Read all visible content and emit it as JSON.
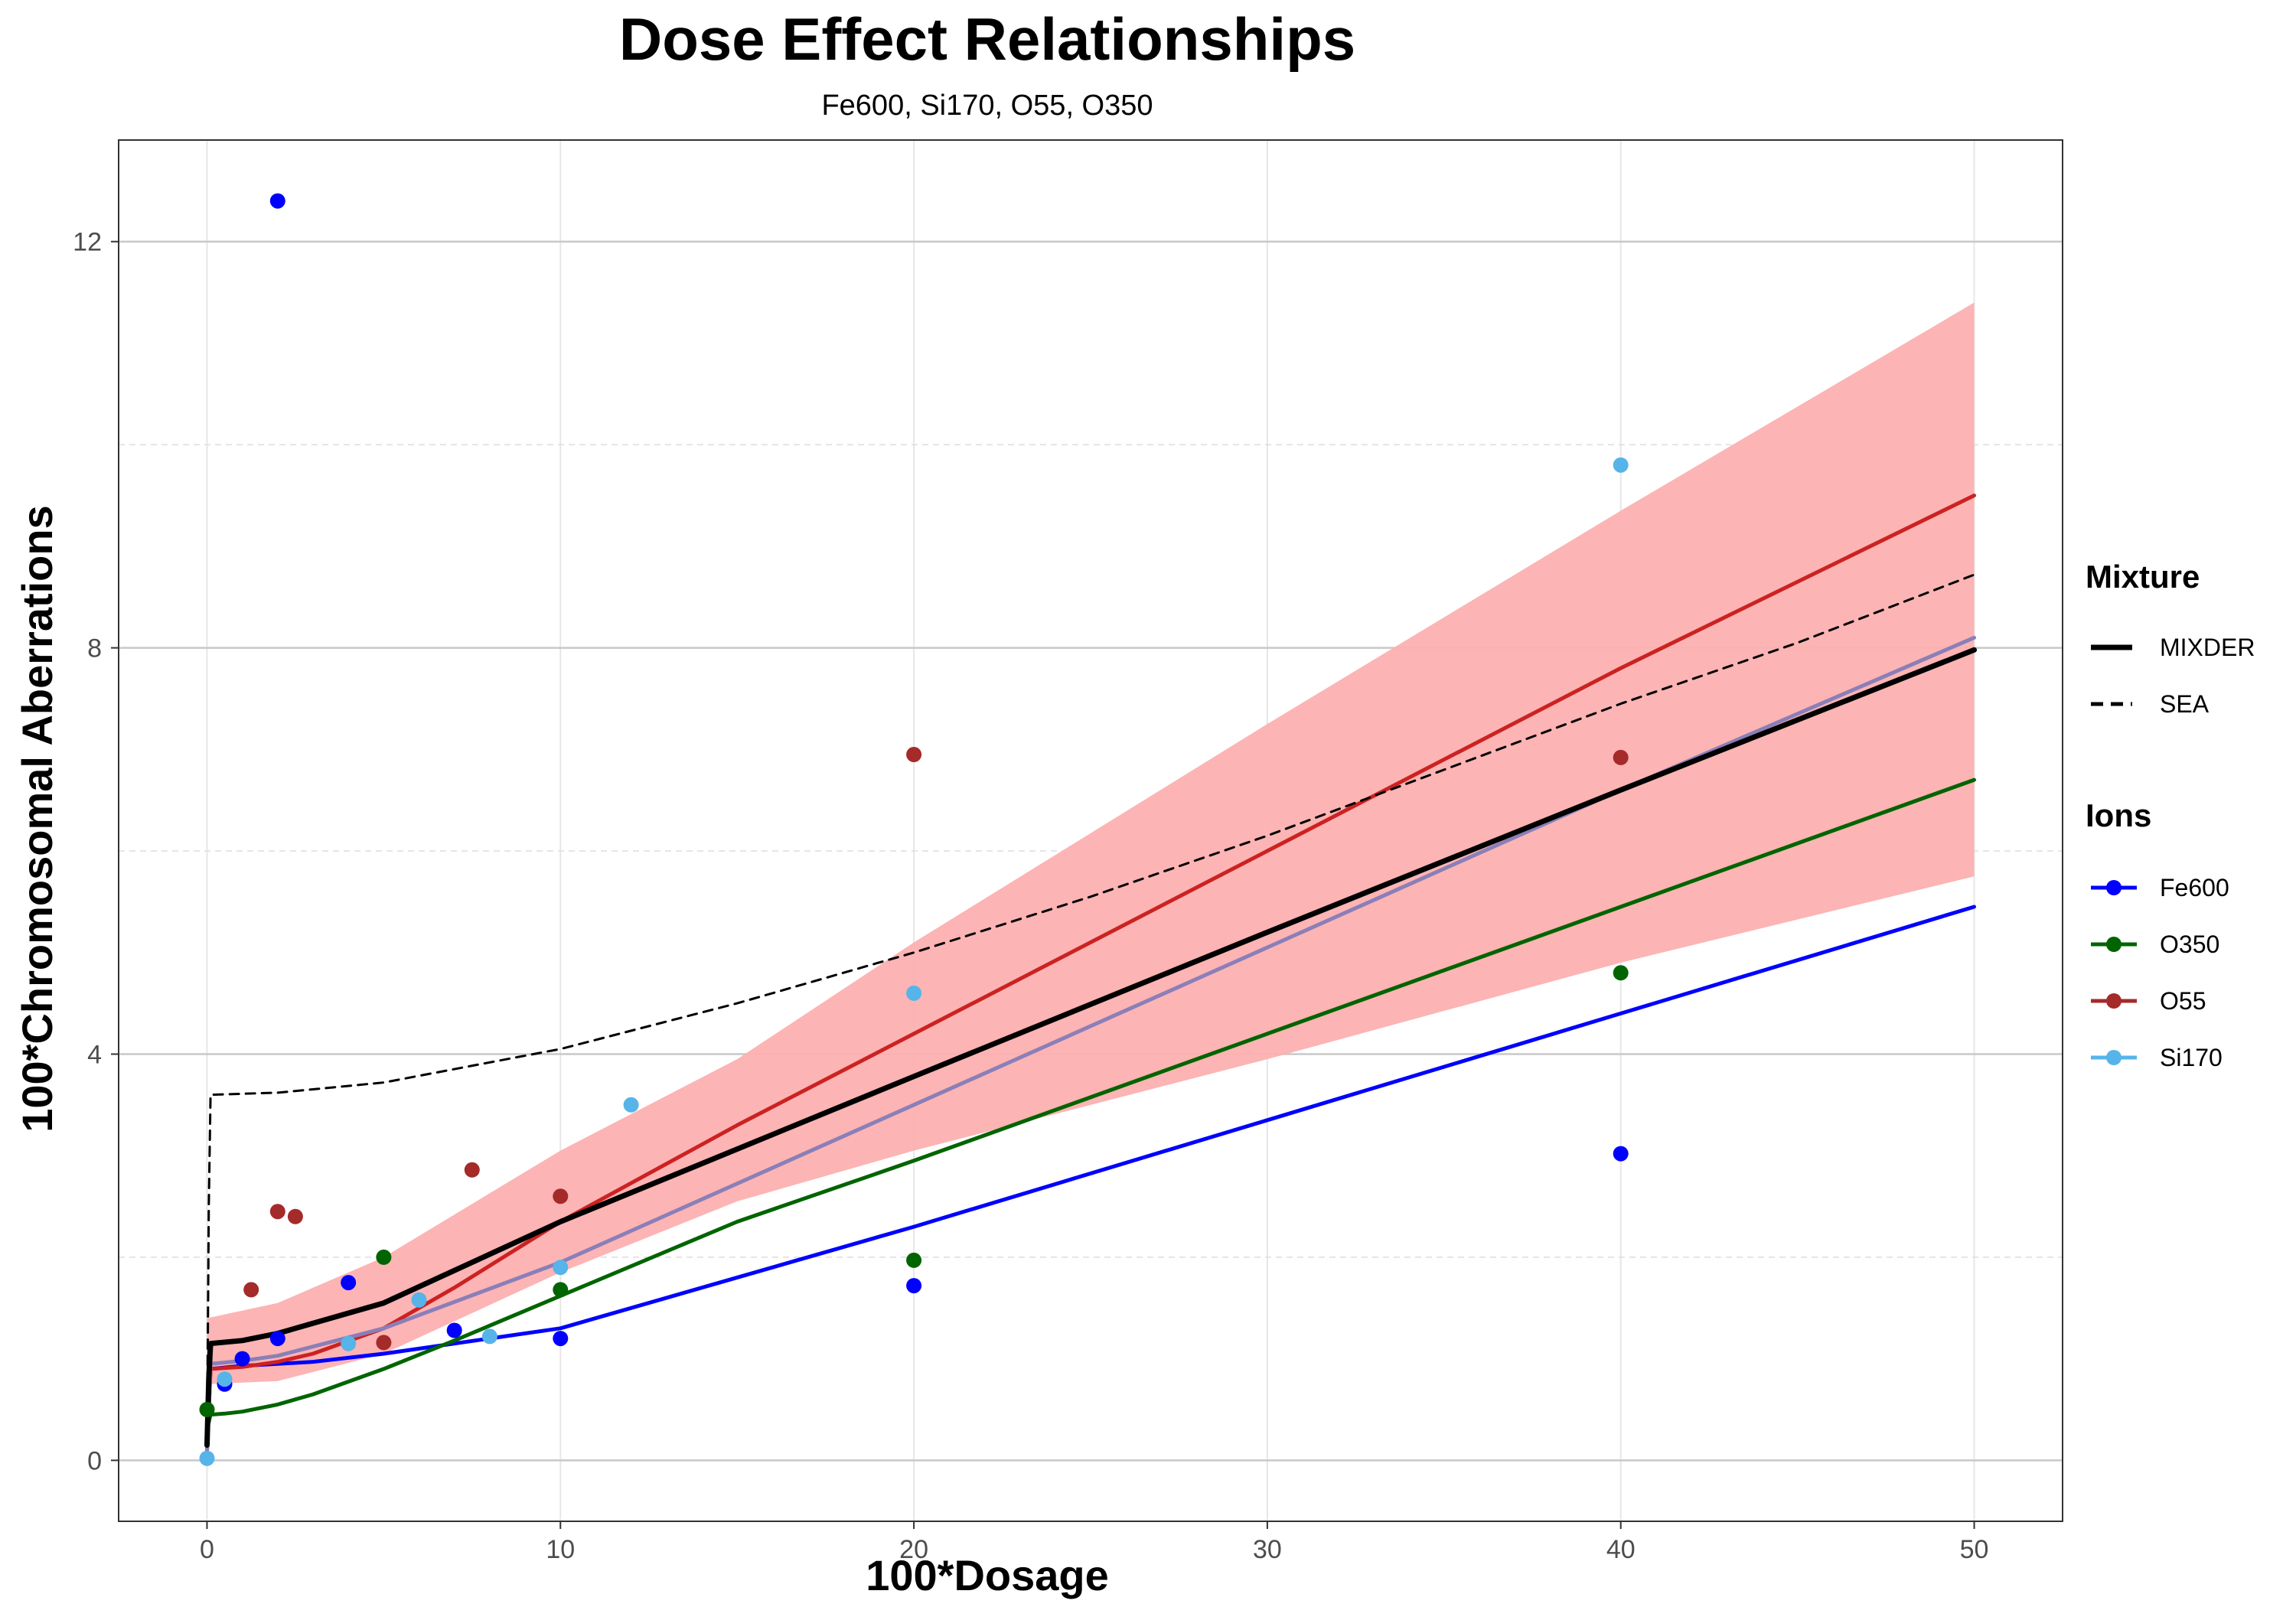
{
  "chart_data": {
    "type": "scatter",
    "title": "Dose Effect Relationships",
    "subtitle": "Fe600, Si170, O55, O350",
    "xlabel": "100*Dosage",
    "ylabel": "100*Chromosomal Aberrations",
    "xlim": [
      -2.5,
      52.5
    ],
    "ylim": [
      -0.6,
      13.0
    ],
    "x_ticks": [
      0,
      10,
      20,
      30,
      40,
      50
    ],
    "y_ticks": [
      0,
      4,
      8,
      12
    ],
    "y_minor_ticks": [
      2,
      6,
      10
    ],
    "grid": true,
    "legend_position": "right",
    "legend": {
      "mixture_title": "Mixture",
      "mixture_items": [
        {
          "label": "MIXDER",
          "style": "solid"
        },
        {
          "label": "SEA",
          "style": "dashed"
        }
      ],
      "ions_title": "Ions",
      "ions_items": [
        {
          "label": "Fe600",
          "color": "#0000ff"
        },
        {
          "label": "O350",
          "color": "#006400"
        },
        {
          "label": "O55",
          "color": "#a52a2a"
        },
        {
          "label": "Si170",
          "color": "#56b4e9"
        }
      ]
    },
    "points": [
      {
        "name": "Fe600",
        "color": "#0000ff",
        "x": [
          0.5,
          1,
          2,
          2,
          4,
          7,
          10,
          20,
          40
        ],
        "y": [
          0.75,
          1.0,
          1.2,
          12.4,
          1.75,
          1.28,
          1.2,
          1.72,
          3.02
        ]
      },
      {
        "name": "O350",
        "color": "#006400",
        "x": [
          0,
          5,
          10,
          20,
          40
        ],
        "y": [
          0.5,
          2.0,
          1.68,
          1.97,
          4.8
        ]
      },
      {
        "name": "O55",
        "color": "#a52a2a",
        "x": [
          1.25,
          2,
          2.5,
          5,
          7.5,
          10,
          20,
          40
        ],
        "y": [
          1.68,
          2.45,
          2.4,
          1.16,
          2.86,
          2.6,
          6.95,
          6.92
        ]
      },
      {
        "name": "Si170",
        "color": "#56b4e9",
        "x": [
          0,
          0.5,
          4,
          6,
          8,
          10,
          12,
          20,
          40
        ],
        "y": [
          0.02,
          0.8,
          1.15,
          1.58,
          1.22,
          1.9,
          3.5,
          4.6,
          9.8
        ]
      }
    ],
    "series": [
      {
        "name": "Fe600",
        "color": "#0000ff",
        "x": [
          0,
          0.1,
          1,
          2,
          3,
          5,
          10,
          20,
          30,
          40,
          50
        ],
        "y": [
          0.1,
          0.9,
          0.93,
          0.95,
          0.97,
          1.05,
          1.3,
          2.3,
          3.35,
          4.4,
          5.45
        ]
      },
      {
        "name": "O350",
        "color": "#006400",
        "x": [
          0,
          0.1,
          0.5,
          1,
          2,
          3,
          5,
          7,
          10,
          15,
          20,
          30,
          40,
          50
        ],
        "y": [
          0.3,
          0.45,
          0.46,
          0.48,
          0.55,
          0.65,
          0.9,
          1.18,
          1.62,
          2.35,
          2.95,
          4.2,
          5.45,
          6.7
        ]
      },
      {
        "name": "O55",
        "color": "#cc2222",
        "x": [
          0,
          0.1,
          1,
          2,
          3,
          5,
          7,
          10,
          15,
          20,
          30,
          40,
          50
        ],
        "y": [
          0.1,
          0.9,
          0.92,
          0.97,
          1.05,
          1.3,
          1.7,
          2.35,
          3.3,
          4.2,
          6.0,
          7.8,
          9.5
        ]
      },
      {
        "name": "Si170",
        "color": "#8a7fb8",
        "x": [
          0,
          0.1,
          1,
          2,
          3,
          5,
          10,
          20,
          30,
          40,
          50
        ],
        "y": [
          0.1,
          0.95,
          0.98,
          1.03,
          1.12,
          1.3,
          1.95,
          3.5,
          5.05,
          6.6,
          8.1
        ]
      },
      {
        "name": "MIXDER",
        "color": "#000000",
        "style": "solid",
        "x": [
          0,
          0.05,
          0.1,
          1,
          2,
          5,
          10,
          20,
          30,
          40,
          50
        ],
        "y": [
          0.15,
          0.8,
          1.15,
          1.18,
          1.25,
          1.55,
          2.35,
          3.78,
          5.2,
          6.6,
          7.98
        ]
      },
      {
        "name": "SEA",
        "color": "#000000",
        "style": "dashed",
        "x": [
          0,
          0.05,
          0.1,
          2,
          5,
          10,
          15,
          20,
          25,
          30,
          35,
          40,
          45,
          50
        ],
        "y": [
          0.15,
          2.5,
          3.6,
          3.62,
          3.72,
          4.05,
          4.5,
          5.0,
          5.55,
          6.15,
          6.8,
          7.45,
          8.05,
          8.72
        ]
      }
    ],
    "ribbon": {
      "color": "#fcb0b0",
      "x": [
        0,
        2,
        5,
        10,
        15,
        20,
        30,
        40,
        50
      ],
      "ymin": [
        0.75,
        0.78,
        1.05,
        1.85,
        2.55,
        3.05,
        3.95,
        4.9,
        5.75
      ],
      "ymax": [
        1.4,
        1.55,
        2.0,
        3.05,
        3.95,
        5.1,
        7.25,
        9.35,
        11.4
      ]
    }
  }
}
